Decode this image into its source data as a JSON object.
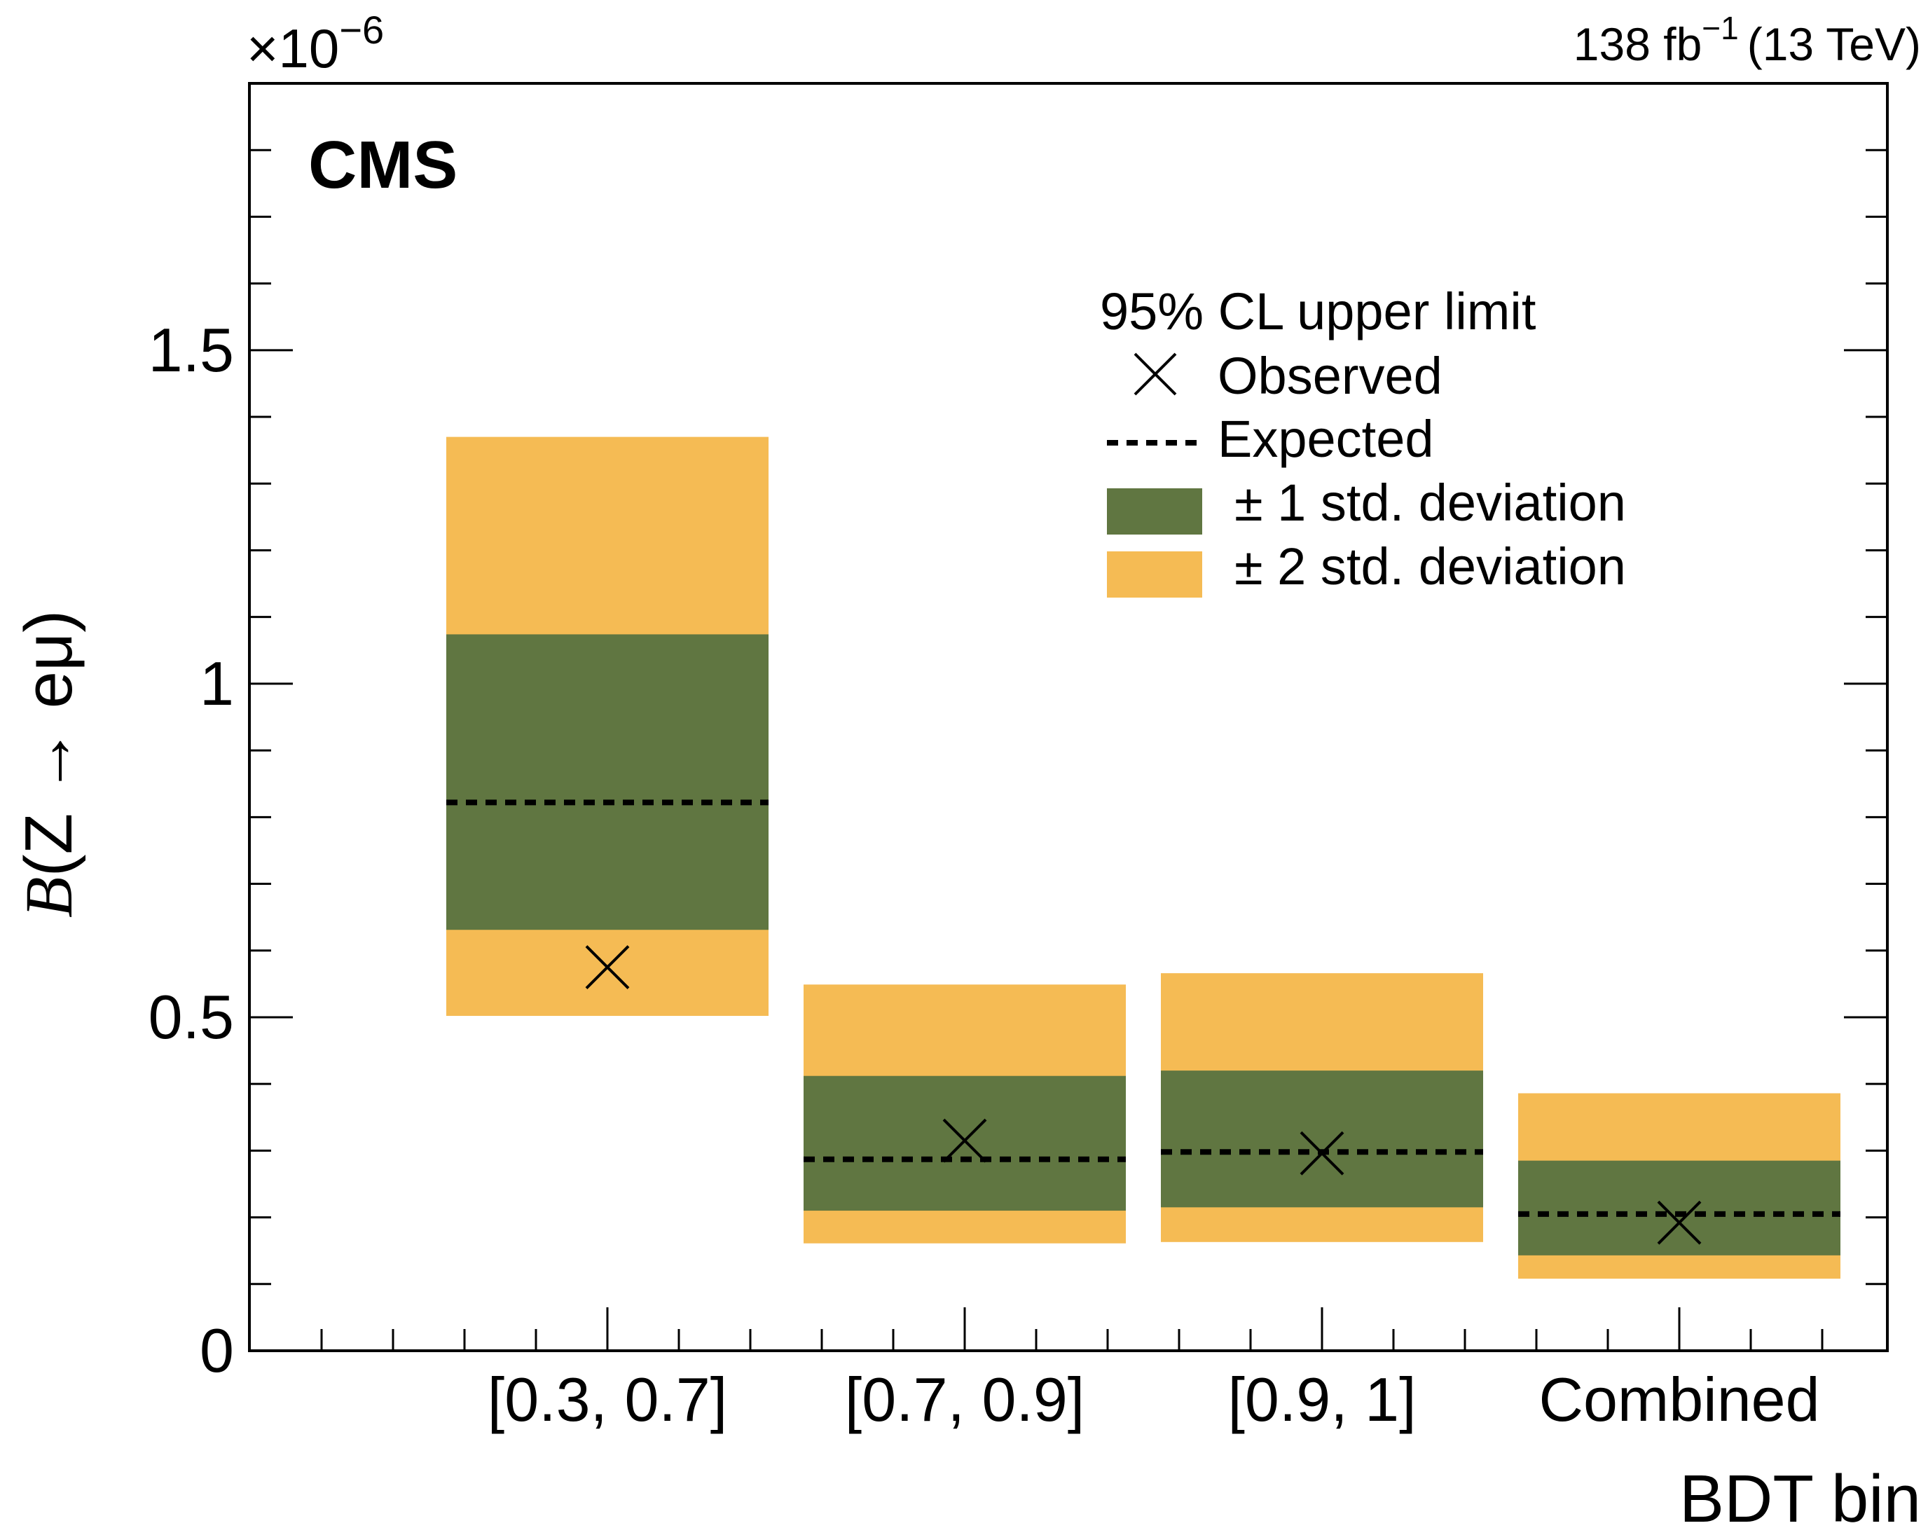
{
  "chart_data": {
    "type": "bar",
    "title": "",
    "experiment_label": "CMS",
    "luminosity_label": "138 fb",
    "luminosity_exponent": "−1",
    "energy_label": "(13 TeV)",
    "xlabel": "BDT bin",
    "ylabel_symbol": "B",
    "ylabel_rest": "(Z → eμ)",
    "y_multiplier_base": "×10",
    "y_multiplier_exponent": "−6",
    "ylim": [
      0,
      1.9
    ],
    "yticks": [
      0,
      0.5,
      1,
      1.5
    ],
    "ytick_labels": [
      "0",
      "0.5",
      "1",
      "1.5"
    ],
    "yminor_step": 0.1,
    "categories": [
      "[0.3, 0.7]",
      "[0.7, 0.9]",
      "[0.9, 1]",
      "Combined"
    ],
    "series": [
      {
        "name": "Observed",
        "values": [
          0.575,
          0.315,
          0.296,
          0.192
        ]
      },
      {
        "name": "Expected",
        "values": [
          0.822,
          0.287,
          0.298,
          0.205
        ]
      },
      {
        "name": "± 1 std. deviation",
        "low": [
          0.631,
          0.21,
          0.215,
          0.143
        ],
        "high": [
          1.074,
          0.412,
          0.42,
          0.285
        ]
      },
      {
        "name": "± 2 std. deviation",
        "low": [
          0.502,
          0.161,
          0.163,
          0.108
        ],
        "high": [
          1.37,
          0.549,
          0.566,
          0.386
        ]
      }
    ],
    "legend": {
      "title": "95% CL upper limit",
      "entries": [
        "Observed",
        "Expected",
        "± 1 std. deviation",
        "± 2 std. deviation"
      ],
      "position": "top-right"
    },
    "colors": {
      "one_sigma": "#607641",
      "two_sigma": "#f5bb54",
      "expected_line": "#000000",
      "observed_marker": "#000000",
      "frame": "#000000"
    }
  }
}
